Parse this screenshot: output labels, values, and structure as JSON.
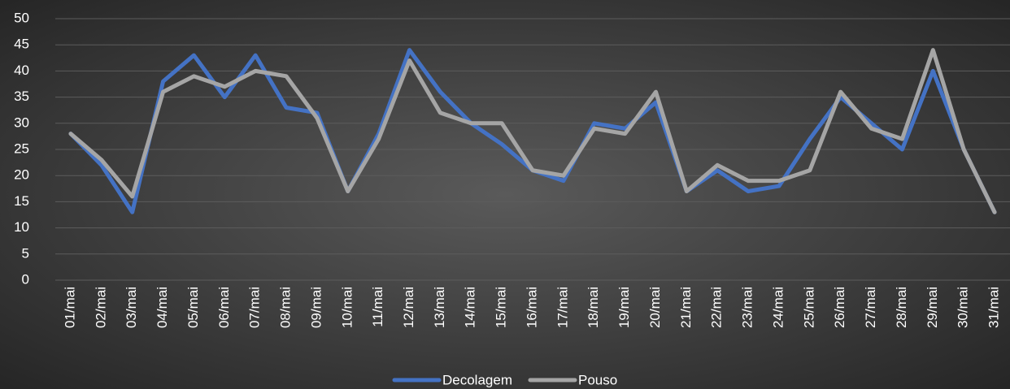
{
  "chart_data": {
    "type": "line",
    "categories": [
      "01/mai",
      "02/mai",
      "03/mai",
      "04/mai",
      "05/mai",
      "06/mai",
      "07/mai",
      "08/mai",
      "09/mai",
      "10/mai",
      "11/mai",
      "12/mai",
      "13/mai",
      "14/mai",
      "15/mai",
      "16/mai",
      "17/mai",
      "18/mai",
      "19/mai",
      "20/mai",
      "21/mai",
      "22/mai",
      "23/mai",
      "24/mai",
      "25/mai",
      "26/mai",
      "27/mai",
      "28/mai",
      "29/mai",
      "30/mai",
      "31/mai"
    ],
    "series": [
      {
        "name": "Decolagem",
        "color": "#4472c4",
        "values": [
          28,
          22,
          13,
          38,
          43,
          35,
          43,
          33,
          32,
          17,
          28,
          44,
          36,
          30,
          26,
          21,
          19,
          30,
          29,
          34,
          17,
          21,
          17,
          18,
          27,
          35,
          30,
          25,
          40,
          25,
          13
        ]
      },
      {
        "name": "Pouso",
        "color": "#a5a5a5",
        "values": [
          28,
          23,
          16,
          36,
          39,
          37,
          40,
          39,
          31,
          17,
          27,
          42,
          32,
          30,
          30,
          21,
          20,
          29,
          28,
          36,
          17,
          22,
          19,
          19,
          21,
          36,
          29,
          27,
          44,
          25,
          13
        ]
      }
    ],
    "ylim": [
      0,
      50
    ],
    "yticks": [
      0,
      5,
      10,
      15,
      20,
      25,
      30,
      35,
      40,
      45,
      50
    ],
    "grid": true,
    "legend": "bottom"
  }
}
